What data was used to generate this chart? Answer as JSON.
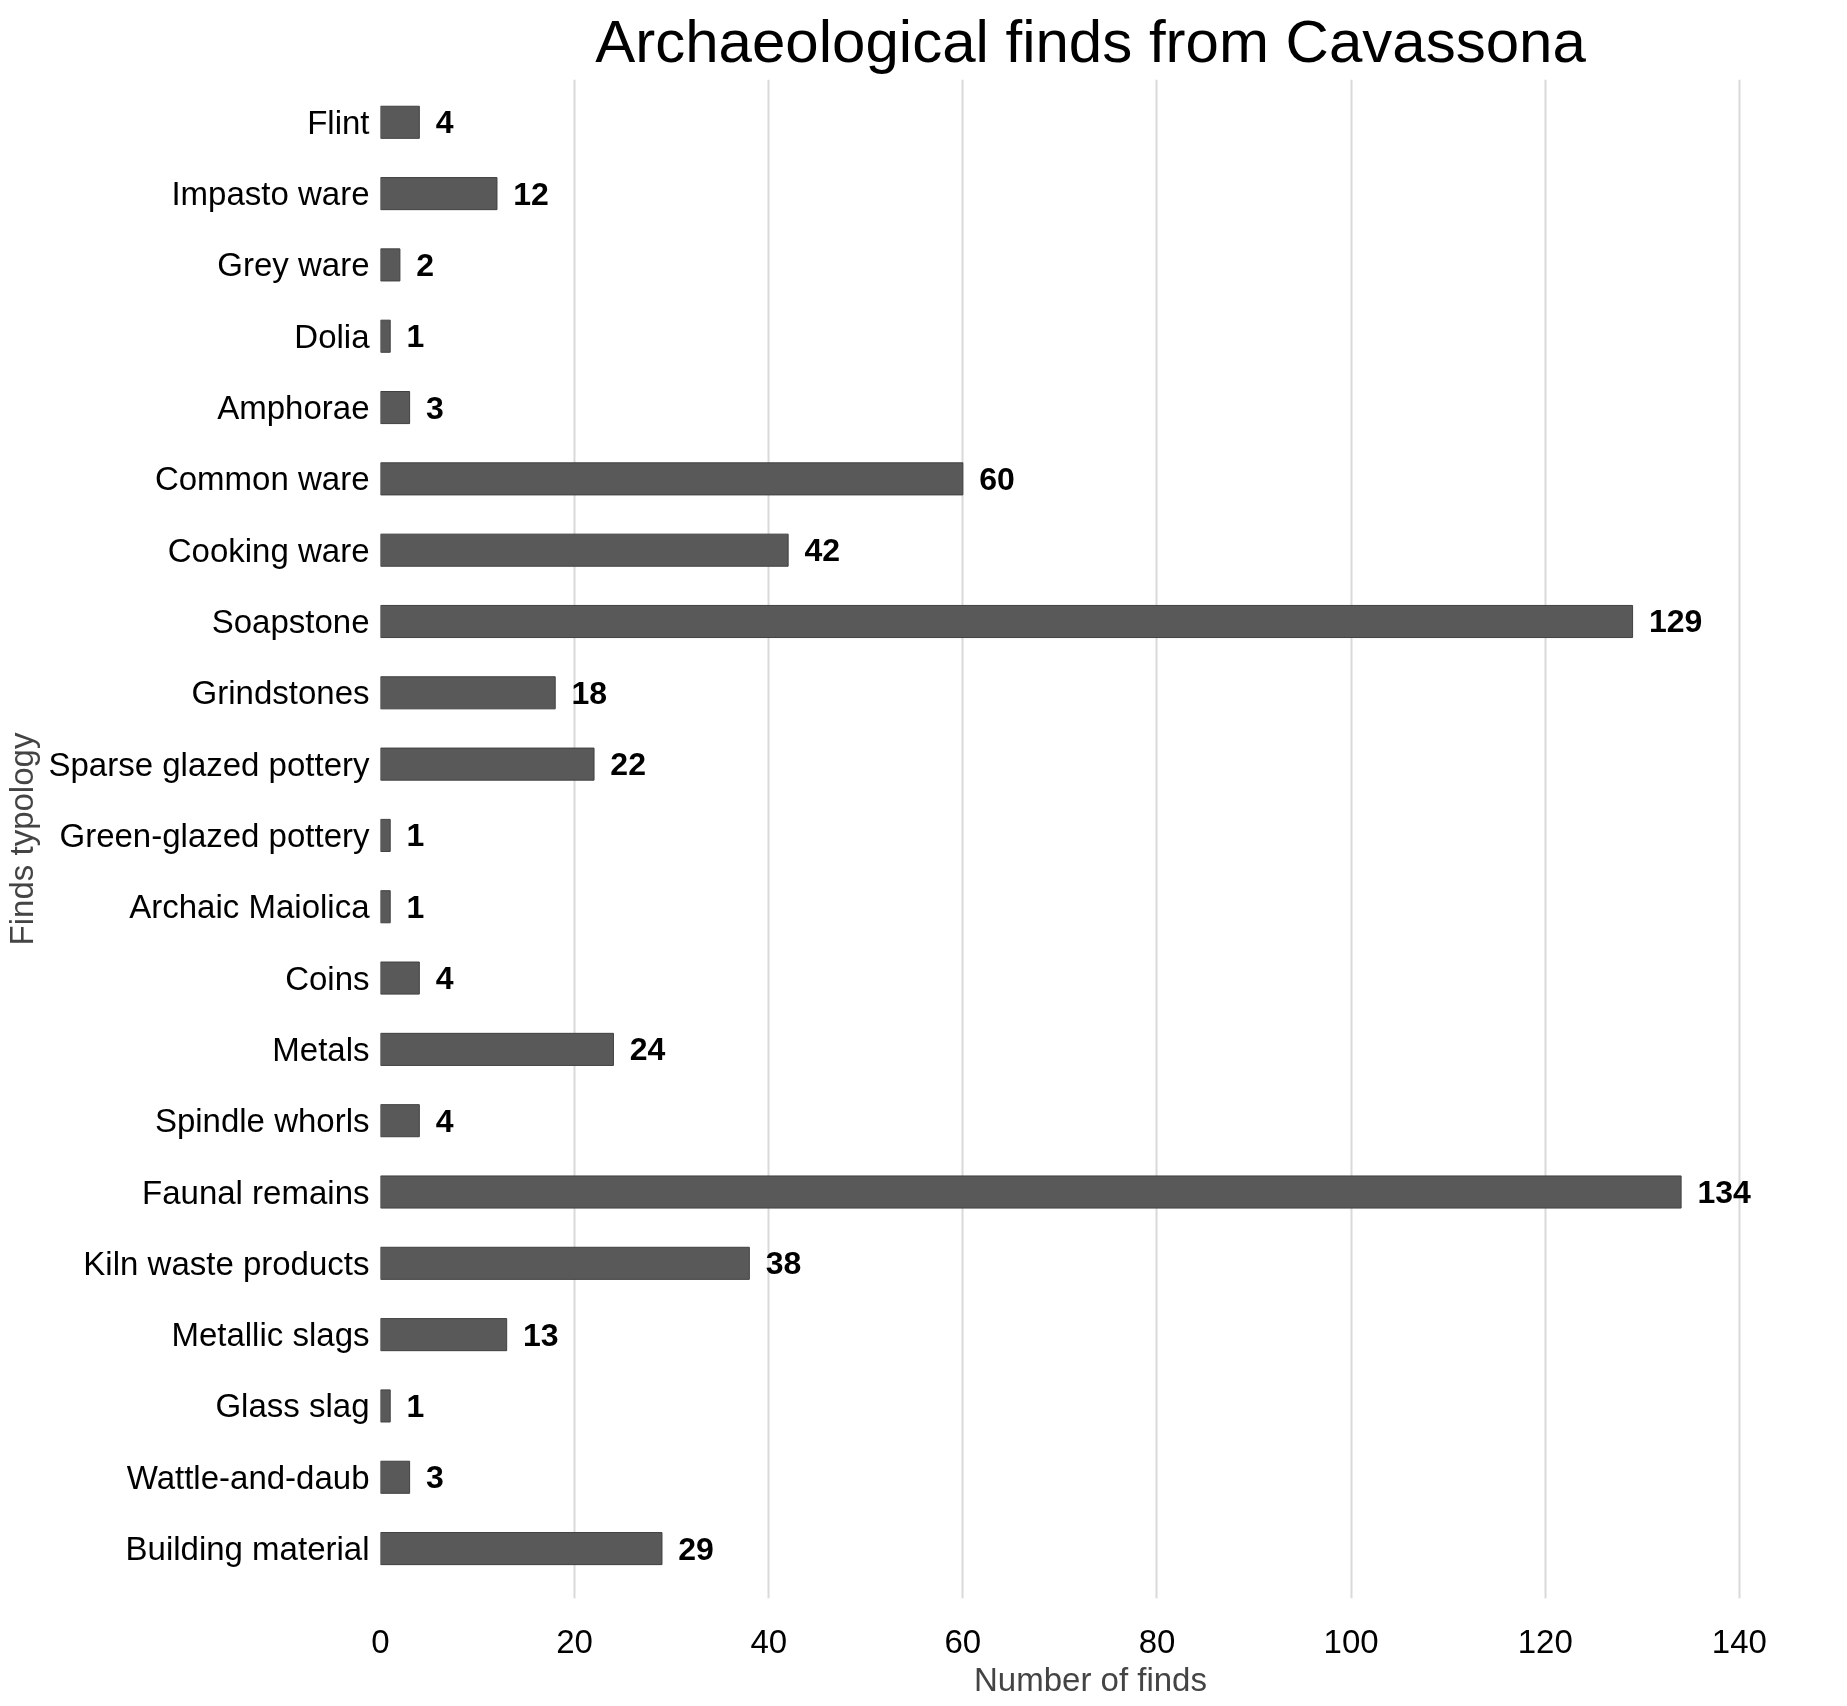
{
  "chart_data": {
    "type": "bar",
    "orientation": "horizontal",
    "title": "Archaeological finds from Cavassona",
    "xlabel": "Number of finds",
    "ylabel": "Finds typology",
    "categories": [
      "Flint",
      "Impasto ware",
      "Grey ware",
      "Dolia",
      "Amphorae",
      "Common ware",
      "Cooking ware",
      "Soapstone",
      "Grindstones",
      "Sparse glazed pottery",
      "Green-glazed pottery",
      "Archaic Maiolica",
      "Coins",
      "Metals",
      "Spindle whorls",
      "Faunal remains",
      "Kiln waste products",
      "Metallic slags",
      "Glass slag",
      "Wattle-and-daub",
      "Building material"
    ],
    "values": [
      4,
      12,
      2,
      1,
      3,
      60,
      42,
      129,
      18,
      22,
      1,
      1,
      4,
      24,
      4,
      134,
      38,
      13,
      1,
      3,
      29
    ],
    "color": "#595959",
    "xlim": [
      0,
      140
    ],
    "xticks": [
      0,
      20,
      40,
      60,
      80,
      100,
      120,
      140
    ],
    "grid": "x",
    "data_labels": true
  }
}
